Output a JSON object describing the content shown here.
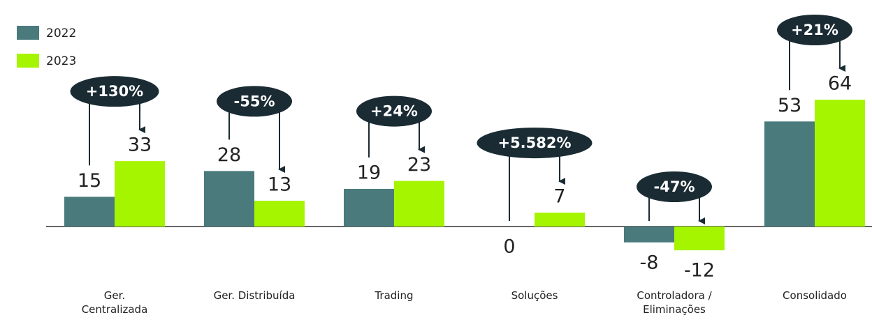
{
  "chart_data": {
    "type": "bar",
    "categories": [
      "Ger. Centralizada",
      "Ger. Distribuída",
      "Trading",
      "Soluções",
      "Controladora / Eliminações",
      "Consolidado"
    ],
    "series": [
      {
        "name": "2022",
        "color": "#4a7a7c",
        "values": [
          15,
          28,
          19,
          0,
          -8,
          53
        ]
      },
      {
        "name": "2023",
        "color": "#a6f500",
        "values": [
          33,
          13,
          23,
          7,
          -12,
          64
        ]
      }
    ],
    "annotations": [
      "+130%",
      "-55%",
      "+24%",
      "+5.582%",
      "-47%",
      "+21%"
    ]
  }
}
